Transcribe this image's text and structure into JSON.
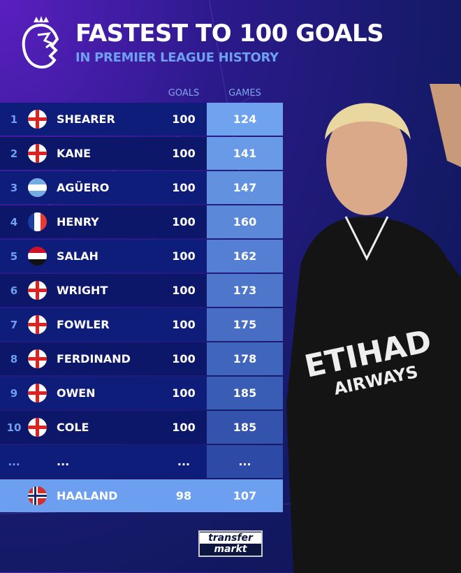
{
  "header": {
    "title": "FASTEST TO 100 GOALS",
    "subtitle": "IN PREMIER LEAGUE HISTORY",
    "logo": "premier-league-lion"
  },
  "columns": {
    "goals": "GOALS",
    "games": "GAMES"
  },
  "rows": [
    {
      "rank": "1",
      "flag": "eng",
      "name": "SHEARER",
      "goals": "100",
      "games": "124"
    },
    {
      "rank": "2",
      "flag": "eng",
      "name": "KANE",
      "goals": "100",
      "games": "141"
    },
    {
      "rank": "3",
      "flag": "arg",
      "name": "AGÜERO",
      "goals": "100",
      "games": "147"
    },
    {
      "rank": "4",
      "flag": "fra",
      "name": "HENRY",
      "goals": "100",
      "games": "160"
    },
    {
      "rank": "5",
      "flag": "egy",
      "name": "SALAH",
      "goals": "100",
      "games": "162"
    },
    {
      "rank": "6",
      "flag": "eng",
      "name": "WRIGHT",
      "goals": "100",
      "games": "173"
    },
    {
      "rank": "7",
      "flag": "eng",
      "name": "FOWLER",
      "goals": "100",
      "games": "175"
    },
    {
      "rank": "8",
      "flag": "eng",
      "name": "FERDINAND",
      "goals": "100",
      "games": "178"
    },
    {
      "rank": "9",
      "flag": "eng",
      "name": "OWEN",
      "goals": "100",
      "games": "185"
    },
    {
      "rank": "10",
      "flag": "eng",
      "name": "COLE",
      "goals": "100",
      "games": "185"
    }
  ],
  "ellipsis": {
    "rank": "...",
    "name": "...",
    "goals": "...",
    "games": "..."
  },
  "highlight": {
    "flag": "nor",
    "name": "HAALAND",
    "goals": "98",
    "games": "107"
  },
  "shirt": {
    "sponsor_line1": "ETIHAD",
    "sponsor_line2": "AIRWAYS"
  },
  "watermark": {
    "line1": "transfer",
    "line2": "markt"
  },
  "colors": {
    "games_top": "#6fa3ef",
    "games_bottom": "#2c4aa6",
    "row_bg": "#0f1d7a",
    "highlight": "#6c9ff0",
    "accent": "#6fa0ef"
  }
}
